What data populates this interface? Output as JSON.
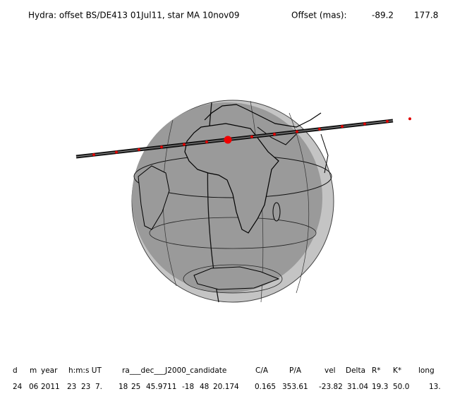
{
  "header": {
    "title": "Hydra: offset BS/DE413 01Jul11, star MA 10nov09",
    "offset_label": "Offset (mas):",
    "offset_values": [
      "-89.2",
      "177.8"
    ]
  },
  "table": {
    "columns": [
      "d",
      "m",
      "year",
      "h:m:s UT",
      "ra___dec___J2000_candidate",
      "C/A",
      "P/A",
      "vel",
      "Delta",
      "R*",
      "K*",
      "long"
    ],
    "rows": [
      [
        "24",
        "06",
        "2011",
        "23",
        "23",
        "7.",
        "18",
        "25",
        "45.9711",
        "-18",
        "48",
        "20.174",
        "0.165",
        "353.61",
        "-23.82",
        "31.04",
        "19.3",
        "50.0",
        "13."
      ]
    ]
  }
}
